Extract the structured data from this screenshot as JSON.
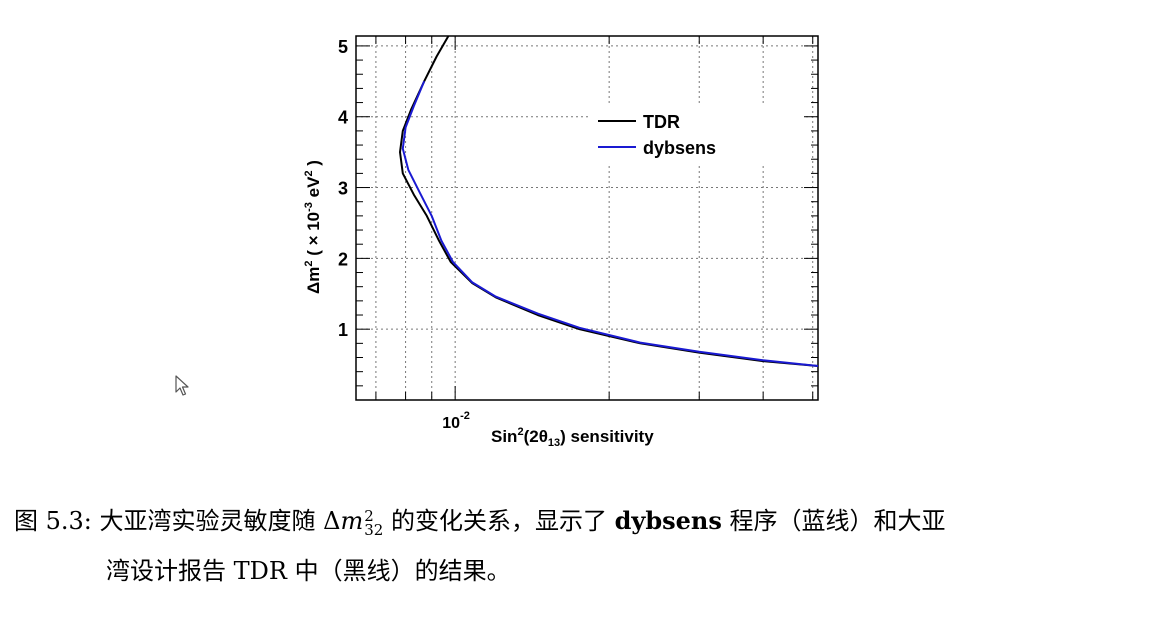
{
  "chart_data": {
    "type": "line",
    "xlabel": "Sin²(2θ₁₃) sensitivity",
    "xtick_labels": [
      "10⁻²"
    ],
    "xscale": "log",
    "ylabel": "Δm² (×10⁻³ eV²)",
    "yticks": [
      1,
      2,
      3,
      4,
      5
    ],
    "ylim": [
      0.5,
      5.25
    ],
    "xlim": [
      0.0064,
      0.0512
    ],
    "grid": true,
    "legend_position": "top-right",
    "series": [
      {
        "name": "TDR",
        "color": "#000000",
        "points": [
          [
            0.0513,
            0.48
          ],
          [
            0.04,
            0.55
          ],
          [
            0.03,
            0.67
          ],
          [
            0.023,
            0.8
          ],
          [
            0.0175,
            1.0
          ],
          [
            0.0145,
            1.2
          ],
          [
            0.012,
            1.45
          ],
          [
            0.0108,
            1.65
          ],
          [
            0.0098,
            1.95
          ],
          [
            0.0093,
            2.25
          ],
          [
            0.0088,
            2.6
          ],
          [
            0.0083,
            2.9
          ],
          [
            0.0079,
            3.2
          ],
          [
            0.0078,
            3.5
          ],
          [
            0.0079,
            3.8
          ],
          [
            0.0082,
            4.1
          ],
          [
            0.0087,
            4.5
          ],
          [
            0.0092,
            4.85
          ],
          [
            0.0097,
            5.25
          ]
        ]
      },
      {
        "name": "dybsens",
        "color": "#1a1ad2",
        "points": [
          [
            0.0513,
            0.48
          ],
          [
            0.04,
            0.56
          ],
          [
            0.03,
            0.68
          ],
          [
            0.023,
            0.81
          ],
          [
            0.0175,
            1.02
          ],
          [
            0.0145,
            1.22
          ],
          [
            0.012,
            1.46
          ],
          [
            0.0108,
            1.66
          ],
          [
            0.0099,
            1.95
          ],
          [
            0.0094,
            2.25
          ],
          [
            0.009,
            2.6
          ],
          [
            0.0085,
            2.95
          ],
          [
            0.0081,
            3.25
          ],
          [
            0.0079,
            3.55
          ],
          [
            0.008,
            3.85
          ],
          [
            0.0083,
            4.15
          ],
          [
            0.0087,
            4.5
          ]
        ]
      }
    ]
  },
  "caption": {
    "prefix": "图 5.3: 大亚湾实验灵敏度随 Δ",
    "m": "m",
    "sup": "2",
    "sub": "32",
    "mid": " 的变化关系，显示了 ",
    "bold": "dybsens",
    "suffix": " 程序（蓝线）和大亚",
    "line2": "湾设计报告 TDR 中（黑线）的结果。"
  }
}
